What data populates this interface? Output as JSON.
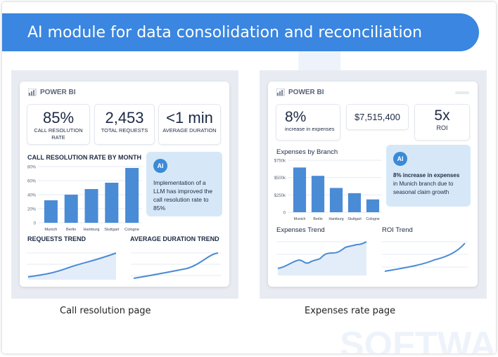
{
  "header": {
    "title": "AI module for data consolidation and reconciliation"
  },
  "watermark": "SOFTWA",
  "left": {
    "brand": "POWER BI",
    "kpis": [
      {
        "value": "85%",
        "label": "CALL RESOLUTION RATE"
      },
      {
        "value": "2,453",
        "label": "TOTAL REQUESTS"
      },
      {
        "value": "<1 min",
        "label": "AVERAGE DURATION"
      }
    ],
    "chart_title": "CALL RESOLUTION RATE BY MONTH",
    "ai_badge": "AI",
    "ai_text": "Implementation of a LLM has improved the call resolution rate to 85%",
    "trend1_title": "REQUESTS TREND",
    "trend2_title": "AVERAGE DURATION TREND",
    "caption": "Call resolution page"
  },
  "right": {
    "brand": "POWER BI",
    "kpis": [
      {
        "value": "8%",
        "label": "increase in expenses"
      },
      {
        "value": "$7,515,400",
        "label": ""
      },
      {
        "value": "5x",
        "label": "ROI"
      }
    ],
    "chart_title": "Expenses by Branch",
    "ai_badge": "AI",
    "ai_text_bold": "8% increase in expenses",
    "ai_text": "in Munich branch due to seasonal claim growth",
    "trend1_title": "Expenses Trend",
    "trend2_title": "ROI Trend",
    "caption": "Expenses rate page"
  },
  "chart_data": [
    {
      "type": "bar",
      "title": "CALL RESOLUTION RATE BY MONTH",
      "categories": [
        "Munich",
        "Berlin",
        "Hamburg",
        "Stuttgart",
        "Cologne"
      ],
      "values": [
        32,
        40,
        48,
        57,
        78
      ],
      "ylim": [
        0,
        80
      ],
      "yticks": [
        "0",
        "20%",
        "40%",
        "60%",
        "80%"
      ],
      "grid": true,
      "color": "#4a8bd6"
    },
    {
      "type": "bar",
      "title": "Expenses by Branch",
      "categories": [
        "Munich",
        "Berlin",
        "Hamburg",
        "Stuttgart",
        "Cologne"
      ],
      "values": [
        645000,
        525000,
        350000,
        275000,
        185000
      ],
      "ylim": [
        0,
        750000
      ],
      "yticks": [
        "0",
        "$250k",
        "$500k",
        "$750k"
      ],
      "grid": true,
      "color": "#4a8bd6"
    }
  ]
}
